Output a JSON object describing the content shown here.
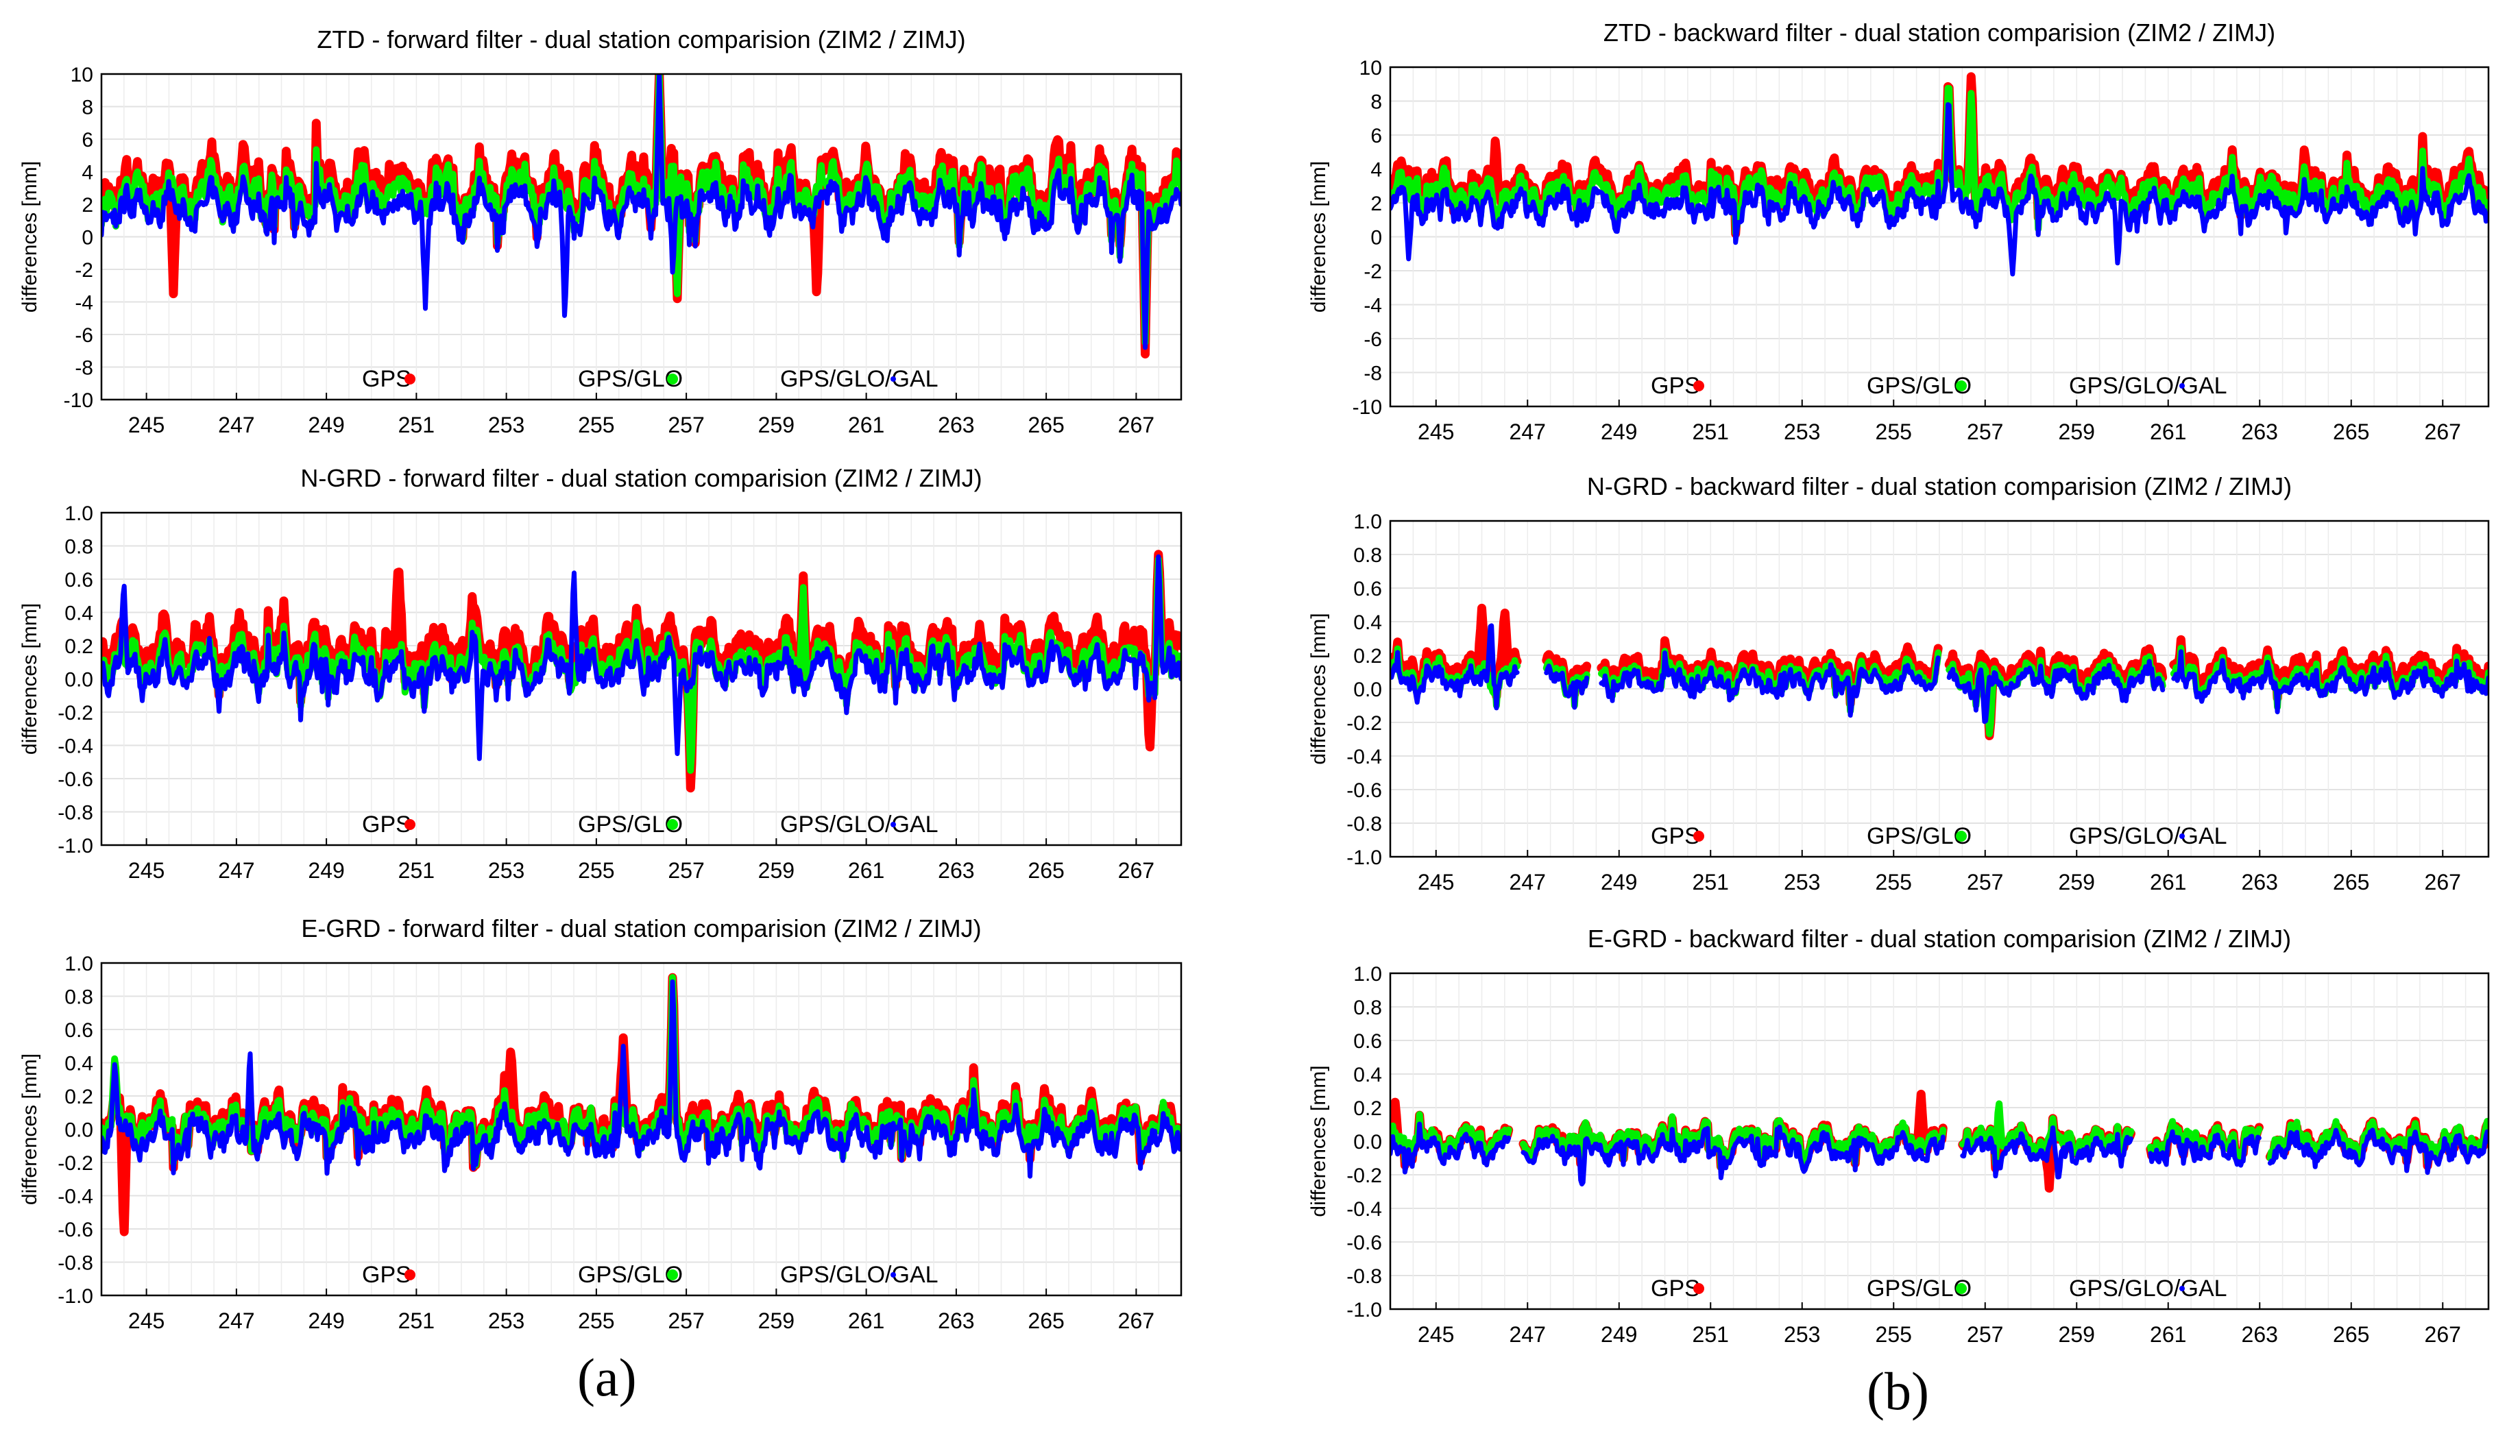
{
  "colors": {
    "GPS": "#ff0000",
    "GPS/GLO": "#00ee00",
    "GPS/GLO/GAL": "#0000ff"
  },
  "panel_labels": [
    "(a)",
    "(b)"
  ],
  "chart_data": [
    {
      "type": "line",
      "title": "ZTD - forward filter - dual station comparision (ZIM2 / ZIMJ)",
      "xlabel": "",
      "ylabel": "differences [mm]",
      "xlim": [
        244,
        268
      ],
      "ylim": [
        -10,
        10
      ],
      "xticks": [
        245,
        247,
        249,
        251,
        253,
        255,
        257,
        259,
        261,
        263,
        265,
        267
      ],
      "yticks": [
        "-10",
        "-8",
        "-6",
        "-4",
        "-2",
        "0",
        "2",
        "4",
        "6",
        "8",
        "10"
      ],
      "grid": true,
      "legend_position": "bottom",
      "series": [
        {
          "name": "GPS",
          "baseline": 3.2,
          "spread": 2.1,
          "noise": 1.3,
          "gaps": [],
          "spikes": [
            [
              256.4,
              10
            ],
            [
              256.8,
              -3.8
            ],
            [
              267.2,
              -7.2
            ],
            [
              259.9,
              -4
            ],
            [
              245.6,
              -3.5
            ]
          ]
        },
        {
          "name": "GPS/GLO",
          "baseline": 2.6,
          "spread": 1.8,
          "noise": 1.2,
          "gaps": [],
          "spikes": [
            [
              256.4,
              10
            ],
            [
              256.8,
              -3.5
            ],
            [
              267.2,
              -6.5
            ]
          ]
        },
        {
          "name": "GPS/GLO/GAL",
          "baseline": 1.8,
          "spread": 1.6,
          "noise": 1.3,
          "gaps": [],
          "spikes": [
            [
              256.4,
              10
            ],
            [
              254.3,
              -5.4
            ],
            [
              251.2,
              -4.4
            ],
            [
              267.2,
              -6.8
            ],
            [
              256.7,
              -2.6
            ]
          ]
        }
      ]
    },
    {
      "type": "line",
      "title": "N-GRD - forward filter - dual station comparision (ZIM2 / ZIMJ)",
      "xlabel": "",
      "ylabel": "differences [mm]",
      "xlim": [
        244,
        268
      ],
      "ylim": [
        -1,
        1
      ],
      "xticks": [
        245,
        247,
        249,
        251,
        253,
        255,
        257,
        259,
        261,
        263,
        265,
        267
      ],
      "yticks": [
        "-1.0",
        "-0.8",
        "-0.6",
        "-0.4",
        "-0.2",
        "0.0",
        "0.2",
        "0.4",
        "0.6",
        "0.8",
        "1.0"
      ],
      "grid": true,
      "legend_position": "bottom",
      "series": [
        {
          "name": "GPS",
          "baseline": 0.18,
          "spread": 0.18,
          "noise": 0.1,
          "gaps": [],
          "spikes": [
            [
              250.6,
              0.72
            ],
            [
              257.1,
              -0.72
            ],
            [
              259.6,
              0.62
            ],
            [
              267.5,
              0.8
            ],
            [
              267.3,
              -0.45
            ]
          ]
        },
        {
          "name": "GPS/GLO",
          "baseline": 0.1,
          "spread": 0.15,
          "noise": 0.1,
          "gaps": [],
          "spikes": [
            [
              257.1,
              -0.6
            ],
            [
              267.5,
              0.78
            ],
            [
              259.6,
              0.55
            ]
          ]
        },
        {
          "name": "GPS/GLO/GAL",
          "baseline": 0.05,
          "spread": 0.15,
          "noise": 0.1,
          "gaps": [],
          "spikes": [
            [
              254.5,
              0.7
            ],
            [
              244.5,
              0.6
            ],
            [
              252.4,
              -0.48
            ],
            [
              267.5,
              0.8
            ],
            [
              256.8,
              -0.45
            ]
          ]
        }
      ]
    },
    {
      "type": "line",
      "title": "E-GRD - forward filter - dual station comparision (ZIM2 / ZIMJ)",
      "xlabel": "",
      "ylabel": "differences [mm]",
      "xlim": [
        244,
        268
      ],
      "ylim": [
        -1,
        1
      ],
      "xticks": [
        245,
        247,
        249,
        251,
        253,
        255,
        257,
        259,
        261,
        263,
        265,
        267
      ],
      "yticks": [
        "-1.0",
        "-0.8",
        "-0.6",
        "-0.4",
        "-0.2",
        "0.0",
        "0.2",
        "0.4",
        "0.6",
        "0.8",
        "1.0"
      ],
      "grid": true,
      "legend_position": "bottom",
      "series": [
        {
          "name": "GPS",
          "baseline": 0.05,
          "spread": 0.15,
          "noise": 0.1,
          "gaps": [],
          "spikes": [
            [
              256.7,
              1.0
            ],
            [
              244.5,
              -0.68
            ],
            [
              253.1,
              0.5
            ],
            [
              255.6,
              0.55
            ]
          ]
        },
        {
          "name": "GPS/GLO",
          "baseline": 0.02,
          "spread": 0.13,
          "noise": 0.1,
          "gaps": [],
          "spikes": [
            [
              256.7,
              1.0
            ],
            [
              244.3,
              0.45
            ]
          ]
        },
        {
          "name": "GPS/GLO/GAL",
          "baseline": -0.04,
          "spread": 0.13,
          "noise": 0.1,
          "gaps": [],
          "spikes": [
            [
              256.7,
              0.98
            ],
            [
              247.3,
              0.5
            ],
            [
              244.3,
              0.42
            ],
            [
              255.6,
              0.5
            ]
          ]
        }
      ]
    },
    {
      "type": "line",
      "title": "ZTD - backward filter - dual station comparision (ZIM2 / ZIMJ)",
      "xlabel": "",
      "ylabel": "differences [mm]",
      "xlim": [
        244,
        268
      ],
      "ylim": [
        -10,
        10
      ],
      "xticks": [
        245,
        247,
        249,
        251,
        253,
        255,
        257,
        259,
        261,
        263,
        265,
        267
      ],
      "yticks": [
        "-10",
        "-8",
        "-6",
        "-4",
        "-2",
        "0",
        "2",
        "4",
        "6",
        "8",
        "10"
      ],
      "grid": true,
      "legend_position": "bottom",
      "series": [
        {
          "name": "GPS",
          "baseline": 3.0,
          "spread": 1.4,
          "noise": 0.8,
          "gaps": [],
          "spikes": [
            [
              256.2,
              10
            ],
            [
              256.7,
              10
            ],
            [
              246.3,
              6
            ]
          ]
        },
        {
          "name": "GPS/GLO",
          "baseline": 2.5,
          "spread": 1.3,
          "noise": 0.8,
          "gaps": [],
          "spikes": [
            [
              256.2,
              10
            ],
            [
              256.7,
              9
            ]
          ]
        },
        {
          "name": "GPS/GLO/GAL",
          "baseline": 1.8,
          "spread": 1.2,
          "noise": 0.8,
          "gaps": [],
          "spikes": [
            [
              256.2,
              9
            ],
            [
              257.6,
              -2.2
            ],
            [
              259.9,
              -1.8
            ],
            [
              244.4,
              -1.3
            ]
          ]
        }
      ]
    },
    {
      "type": "line",
      "title": "N-GRD - backward filter - dual station comparision (ZIM2 / ZIMJ)",
      "xlabel": "",
      "ylabel": "differences [mm]",
      "xlim": [
        244,
        268
      ],
      "ylim": [
        -1,
        1
      ],
      "xticks": [
        245,
        247,
        249,
        251,
        253,
        255,
        257,
        259,
        261,
        263,
        265,
        267
      ],
      "yticks": [
        "-1.0",
        "-0.8",
        "-0.6",
        "-0.4",
        "-0.2",
        "0.0",
        "0.2",
        "0.4",
        "0.6",
        "0.8",
        "1.0"
      ],
      "grid": true,
      "legend_position": "bottom",
      "series": [
        {
          "name": "GPS",
          "baseline": 0.12,
          "spread": 0.1,
          "noise": 0.05,
          "gaps": [
            [
              246.8,
              247.4
            ],
            [
              248.3,
              248.6
            ],
            [
              256.0,
              256.2
            ],
            [
              260.9,
              261.1
            ]
          ],
          "spikes": [
            [
              246.0,
              0.48
            ],
            [
              246.5,
              0.48
            ],
            [
              257.1,
              -0.32
            ]
          ]
        },
        {
          "name": "GPS/GLO",
          "baseline": 0.07,
          "spread": 0.1,
          "noise": 0.05,
          "gaps": [
            [
              246.8,
              247.4
            ],
            [
              248.3,
              248.6
            ],
            [
              256.0,
              256.2
            ],
            [
              260.9,
              261.1
            ]
          ],
          "spikes": [
            [
              257.1,
              -0.3
            ]
          ]
        },
        {
          "name": "GPS/GLO/GAL",
          "baseline": 0.04,
          "spread": 0.1,
          "noise": 0.05,
          "gaps": [
            [
              246.8,
              247.4
            ],
            [
              248.3,
              248.6
            ],
            [
              256.0,
              256.2
            ],
            [
              260.9,
              261.1
            ]
          ],
          "spikes": [
            [
              246.2,
              0.45
            ],
            [
              257.0,
              -0.25
            ]
          ]
        }
      ]
    },
    {
      "type": "line",
      "title": "E-GRD - backward filter - dual station comparision (ZIM2 / ZIMJ)",
      "xlabel": "",
      "ylabel": "differences [mm]",
      "xlim": [
        244,
        268
      ],
      "ylim": [
        -1,
        1
      ],
      "xticks": [
        245,
        247,
        249,
        251,
        253,
        255,
        257,
        259,
        261,
        263,
        265,
        267
      ],
      "yticks": [
        "-1.0",
        "-0.8",
        "-0.6",
        "-0.4",
        "-0.2",
        "0.0",
        "0.2",
        "0.4",
        "0.6",
        "0.8",
        "1.0"
      ],
      "grid": true,
      "legend_position": "bottom",
      "series": [
        {
          "name": "GPS",
          "baseline": 0.0,
          "spread": 0.1,
          "noise": 0.04,
          "gaps": [
            [
              246.6,
              246.9
            ],
            [
              256.1,
              256.5
            ],
            [
              260.2,
              260.6
            ],
            [
              263.0,
              263.2
            ]
          ],
          "spikes": [
            [
              244.1,
              0.25
            ],
            [
              258.4,
              -0.28
            ],
            [
              255.6,
              0.28
            ]
          ]
        },
        {
          "name": "GPS/GLO",
          "baseline": 0.0,
          "spread": 0.1,
          "noise": 0.04,
          "gaps": [
            [
              246.6,
              246.9
            ],
            [
              256.1,
              256.5
            ],
            [
              260.2,
              260.6
            ],
            [
              263.0,
              263.2
            ]
          ],
          "spikes": [
            [
              257.3,
              0.25
            ]
          ]
        },
        {
          "name": "GPS/GLO/GAL",
          "baseline": -0.05,
          "spread": 0.1,
          "noise": 0.04,
          "gaps": [
            [
              246.6,
              246.9
            ],
            [
              256.1,
              256.5
            ],
            [
              260.2,
              260.6
            ],
            [
              263.0,
              263.2
            ]
          ],
          "spikes": [
            [
              248.2,
              -0.3
            ],
            [
              258.6,
              -0.25
            ]
          ]
        }
      ]
    }
  ]
}
